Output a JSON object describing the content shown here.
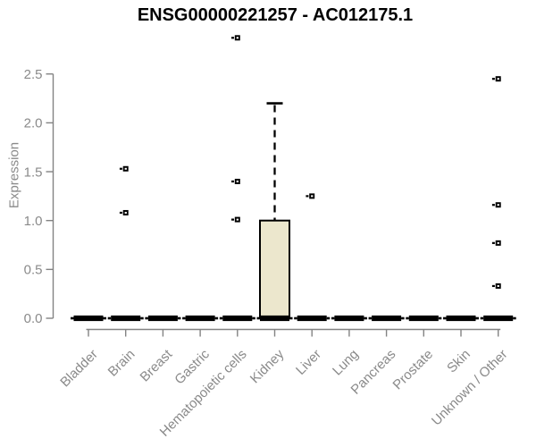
{
  "chart_data": {
    "type": "boxplot",
    "title": "ENSG00000221257 - AC012175.1",
    "xlabel": "",
    "ylabel": "Expression",
    "ylim": [
      0,
      2.5
    ],
    "yticks": [
      0.0,
      0.5,
      1.0,
      1.5,
      2.0,
      2.5
    ],
    "ytick_labels": [
      "0.0",
      "0.5",
      "1.0",
      "1.5",
      "2.0",
      "2.5"
    ],
    "grid": false,
    "legend": "none",
    "categories": [
      "Bladder",
      "Brain",
      "Breast",
      "Gastric",
      "Hematopoietic cells",
      "Kidney",
      "Liver",
      "Lung",
      "Pancreas",
      "Prostate",
      "Skin",
      "Unknown / Other"
    ],
    "boxes": [
      {
        "category": "Bladder",
        "median": 0,
        "q1": 0,
        "q3": 0,
        "whisker_low": 0,
        "whisker_high": 0,
        "outliers": []
      },
      {
        "category": "Brain",
        "median": 0,
        "q1": 0,
        "q3": 0,
        "whisker_low": 0,
        "whisker_high": 0,
        "outliers": [
          1.53,
          1.08
        ]
      },
      {
        "category": "Breast",
        "median": 0,
        "q1": 0,
        "q3": 0,
        "whisker_low": 0,
        "whisker_high": 0,
        "outliers": []
      },
      {
        "category": "Gastric",
        "median": 0,
        "q1": 0,
        "q3": 0,
        "whisker_low": 0,
        "whisker_high": 0,
        "outliers": []
      },
      {
        "category": "Hematopoietic cells",
        "median": 0,
        "q1": 0,
        "q3": 0,
        "whisker_low": 0,
        "whisker_high": 0,
        "outliers": [
          2.87,
          1.4,
          1.01
        ]
      },
      {
        "category": "Kidney",
        "median": 0,
        "q1": 0,
        "q3": 1.0,
        "whisker_low": 0,
        "whisker_high": 2.2,
        "outliers": []
      },
      {
        "category": "Liver",
        "median": 0,
        "q1": 0,
        "q3": 0,
        "whisker_low": 0,
        "whisker_high": 0,
        "outliers": [
          1.25
        ]
      },
      {
        "category": "Lung",
        "median": 0,
        "q1": 0,
        "q3": 0,
        "whisker_low": 0,
        "whisker_high": 0,
        "outliers": []
      },
      {
        "category": "Pancreas",
        "median": 0,
        "q1": 0,
        "q3": 0,
        "whisker_low": 0,
        "whisker_high": 0,
        "outliers": []
      },
      {
        "category": "Prostate",
        "median": 0,
        "q1": 0,
        "q3": 0,
        "whisker_low": 0,
        "whisker_high": 0,
        "outliers": []
      },
      {
        "category": "Skin",
        "median": 0,
        "q1": 0,
        "q3": 0,
        "whisker_low": 0,
        "whisker_high": 0,
        "outliers": []
      },
      {
        "category": "Unknown / Other",
        "median": 0,
        "q1": 0,
        "q3": 0,
        "whisker_low": 0,
        "whisker_high": 0,
        "outliers": [
          2.45,
          1.16,
          0.77,
          0.33
        ]
      }
    ],
    "colors": {
      "box_fill": "#ECE7CD",
      "box_stroke": "#000000",
      "median": "#000000",
      "whisker": "#000000",
      "outlier": "#000000",
      "axis": "#838383",
      "tick_text": "#8A8A8A",
      "title_text": "#000000",
      "background": "#FFFFFF"
    }
  }
}
